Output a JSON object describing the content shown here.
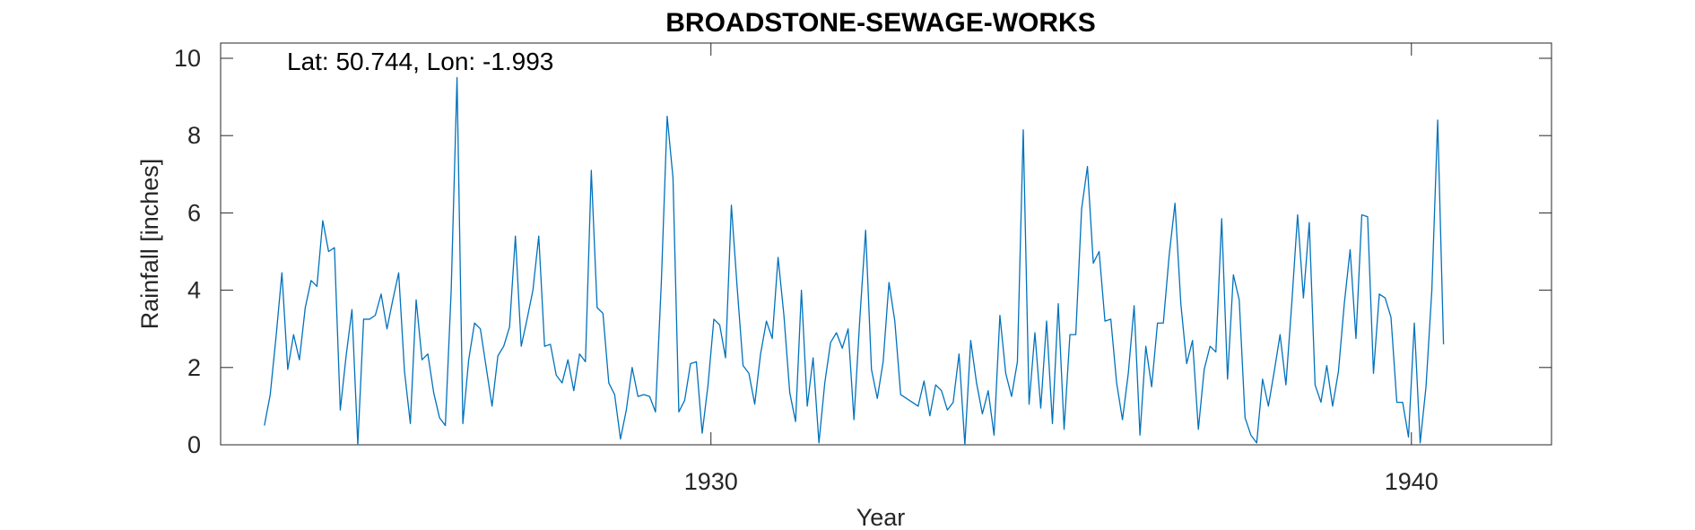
{
  "chart_data": {
    "type": "line",
    "title": "BROADSTONE-SEWAGE-WORKS",
    "annotation": "Lat: 50.744, Lon: -1.993",
    "xlabel": "Year",
    "ylabel": "Rainfall [inches]",
    "xlim": [
      1923.0,
      1942.0
    ],
    "ylim": [
      0,
      10.4
    ],
    "x_ticks": [
      1930,
      1940
    ],
    "y_ticks": [
      0,
      2,
      4,
      6,
      8,
      10
    ],
    "grid": false,
    "line_color": "#0072BD",
    "x_start": 1923.625,
    "x_step": 0.0833333,
    "series": [
      {
        "values": [
          0.5,
          1.3,
          2.8,
          4.45,
          1.95,
          2.85,
          2.2,
          3.55,
          4.25,
          4.1,
          5.8,
          5.0,
          5.1,
          0.9,
          2.3,
          3.5,
          0.0,
          3.25,
          3.25,
          3.35,
          3.9,
          3.0,
          3.75,
          4.45,
          1.9,
          0.55,
          3.75,
          2.2,
          2.35,
          1.35,
          0.7,
          0.5,
          4.0,
          9.5,
          0.55,
          2.2,
          3.15,
          3.0,
          2.0,
          1.0,
          2.3,
          2.55,
          3.05,
          5.4,
          2.55,
          3.25,
          4.0,
          5.4,
          2.55,
          2.6,
          1.8,
          1.6,
          2.2,
          1.4,
          2.35,
          2.15,
          7.1,
          3.55,
          3.4,
          1.6,
          1.3,
          0.15,
          0.9,
          2.0,
          1.25,
          1.3,
          1.25,
          0.85,
          4.2,
          8.5,
          6.9,
          0.85,
          1.15,
          2.1,
          2.15,
          0.3,
          1.55,
          3.25,
          3.1,
          2.25,
          6.2,
          4.05,
          2.05,
          1.85,
          1.05,
          2.35,
          3.2,
          2.75,
          4.85,
          3.35,
          1.35,
          0.6,
          4.0,
          1.0,
          2.25,
          0.05,
          1.6,
          2.65,
          2.9,
          2.5,
          3.0,
          0.65,
          3.25,
          5.55,
          1.95,
          1.2,
          2.15,
          4.2,
          3.2,
          1.3,
          1.2,
          1.1,
          1.0,
          1.65,
          0.75,
          1.55,
          1.4,
          0.9,
          1.1,
          2.35,
          0.0,
          2.7,
          1.6,
          0.8,
          1.4,
          0.25,
          3.35,
          1.85,
          1.25,
          2.15,
          8.15,
          1.05,
          2.9,
          0.95,
          3.2,
          0.55,
          3.65,
          0.4,
          2.85,
          2.85,
          6.1,
          7.2,
          4.7,
          5.0,
          3.2,
          3.25,
          1.6,
          0.65,
          1.85,
          3.6,
          0.25,
          2.55,
          1.5,
          3.15,
          3.15,
          4.9,
          6.25,
          3.65,
          2.1,
          2.7,
          0.4,
          1.95,
          2.55,
          2.4,
          5.85,
          1.7,
          4.4,
          3.75,
          0.7,
          0.25,
          0.05,
          1.7,
          1.0,
          1.9,
          2.85,
          1.55,
          3.65,
          5.95,
          3.8,
          5.75,
          1.55,
          1.1,
          2.05,
          1.0,
          1.9,
          3.65,
          5.05,
          2.75,
          5.95,
          5.9,
          1.85,
          3.9,
          3.8,
          3.3,
          1.1,
          1.1,
          0.2,
          3.15,
          0.05,
          1.5,
          4.0,
          8.4,
          2.6
        ]
      }
    ]
  }
}
